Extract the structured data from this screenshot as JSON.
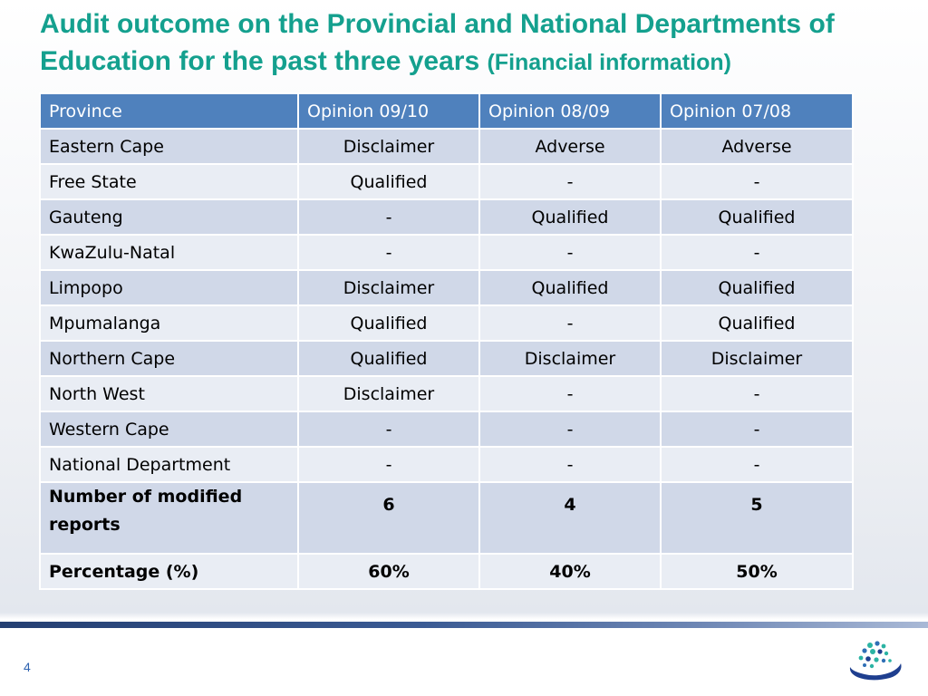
{
  "slide": {
    "title_main": "Audit outcome on the Provincial and National Departments of Education for the past three years",
    "title_sub": "(Financial information)",
    "page_number": "4"
  },
  "table": {
    "headers": [
      "Province",
      "Opinion 09/10",
      "Opinion 08/09",
      "Opinion 07/08"
    ],
    "rows": [
      [
        "Eastern Cape",
        "Disclaimer",
        "Adverse",
        "Adverse"
      ],
      [
        "Free State",
        "Qualified",
        "-",
        "-"
      ],
      [
        "Gauteng",
        "-",
        "Qualified",
        "Qualified"
      ],
      [
        "KwaZulu-Natal",
        "-",
        "-",
        "-"
      ],
      [
        "Limpopo",
        "Disclaimer",
        "Qualified",
        "Qualified"
      ],
      [
        "Mpumalanga",
        "Qualified",
        "-",
        "Qualified"
      ],
      [
        "Northern Cape",
        "Qualified",
        "Disclaimer",
        "Disclaimer"
      ],
      [
        "North West",
        "Disclaimer",
        "-",
        "-"
      ],
      [
        "Western Cape",
        "-",
        "-",
        "-"
      ],
      [
        "National Department",
        "-",
        "-",
        "-"
      ]
    ],
    "summary_rows": [
      [
        "Number of modified reports",
        "6",
        "4",
        "5"
      ],
      [
        "Percentage (%)",
        "60%",
        "40%",
        "50%"
      ]
    ]
  },
  "colors": {
    "title": "#14a08e",
    "header_fill": "#4f81bd",
    "row_dark": "#d0d8e8",
    "row_light": "#e9edf4",
    "footer_rule": "#243f72",
    "page_number": "#2f63b0"
  },
  "logo_icon": "dotted-swoosh-logo-icon"
}
